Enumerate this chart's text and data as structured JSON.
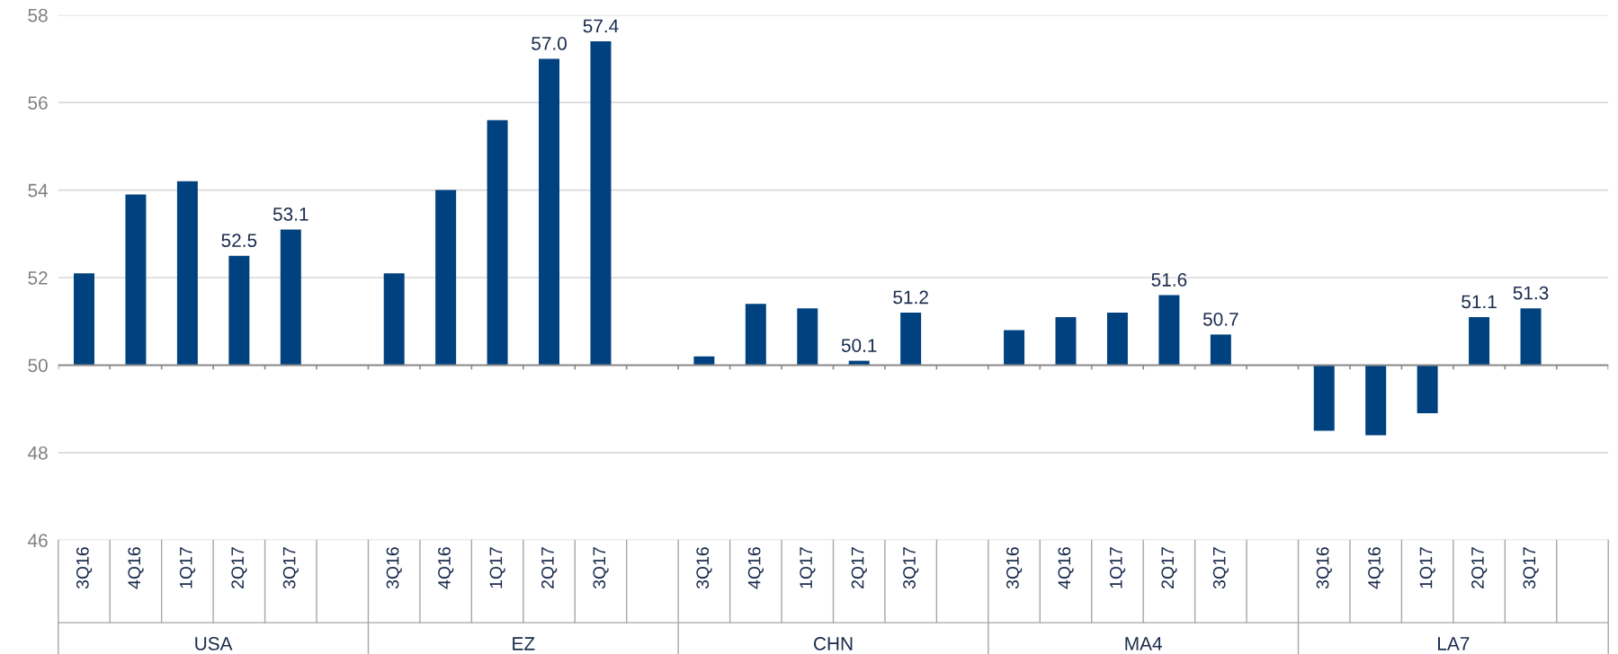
{
  "chart_data": {
    "type": "bar",
    "categories": [
      "3Q16",
      "4Q16",
      "1Q17",
      "2Q17",
      "3Q17",
      null,
      "3Q16",
      "4Q16",
      "1Q17",
      "2Q17",
      "3Q17",
      null,
      "3Q16",
      "4Q16",
      "1Q17",
      "2Q17",
      "3Q17",
      null,
      "3Q16",
      "4Q16",
      "1Q17",
      "2Q17",
      "3Q17",
      null,
      "3Q16",
      "4Q16",
      "1Q17",
      "2Q17",
      "3Q17",
      null
    ],
    "series": [
      {
        "color": "#00427f",
        "values": [
          2.1,
          3.9,
          4.2,
          2.5,
          3.1,
          null,
          2.1,
          4.0,
          5.6,
          7.0,
          7.4,
          null,
          0.2,
          1.4,
          1.3,
          0.1,
          1.2,
          null,
          0.8,
          1.1,
          1.2,
          1.6,
          0.7,
          null,
          -1.5,
          -1.6,
          -1.1,
          1.1,
          1.3,
          null
        ],
        "base": [
          50,
          50,
          50,
          50,
          50,
          null,
          50,
          50,
          50,
          50,
          50,
          null,
          50,
          50,
          50,
          50,
          50,
          null,
          50,
          50,
          50,
          50,
          50,
          null,
          50,
          50,
          50,
          50,
          50,
          null
        ],
        "value_labels": [
          null,
          null,
          null,
          "52.5",
          "53.1",
          null,
          null,
          null,
          null,
          "57.0",
          "57.4",
          null,
          null,
          null,
          null,
          "50.1",
          "51.2",
          null,
          null,
          null,
          null,
          "51.6",
          "50.7",
          null,
          null,
          null,
          null,
          "51.1",
          "51.3",
          null
        ]
      }
    ],
    "annotations": [
      "USA",
      "EZ",
      "CHN",
      "MA4",
      "LA7"
    ],
    "ylim": [
      46,
      58
    ],
    "yticks": [
      46,
      48,
      50,
      52,
      54,
      56,
      58
    ],
    "ref_lines": [
      {
        "axis": "y",
        "value": 50,
        "color": "#8c8c8c"
      }
    ],
    "grid": "y"
  }
}
